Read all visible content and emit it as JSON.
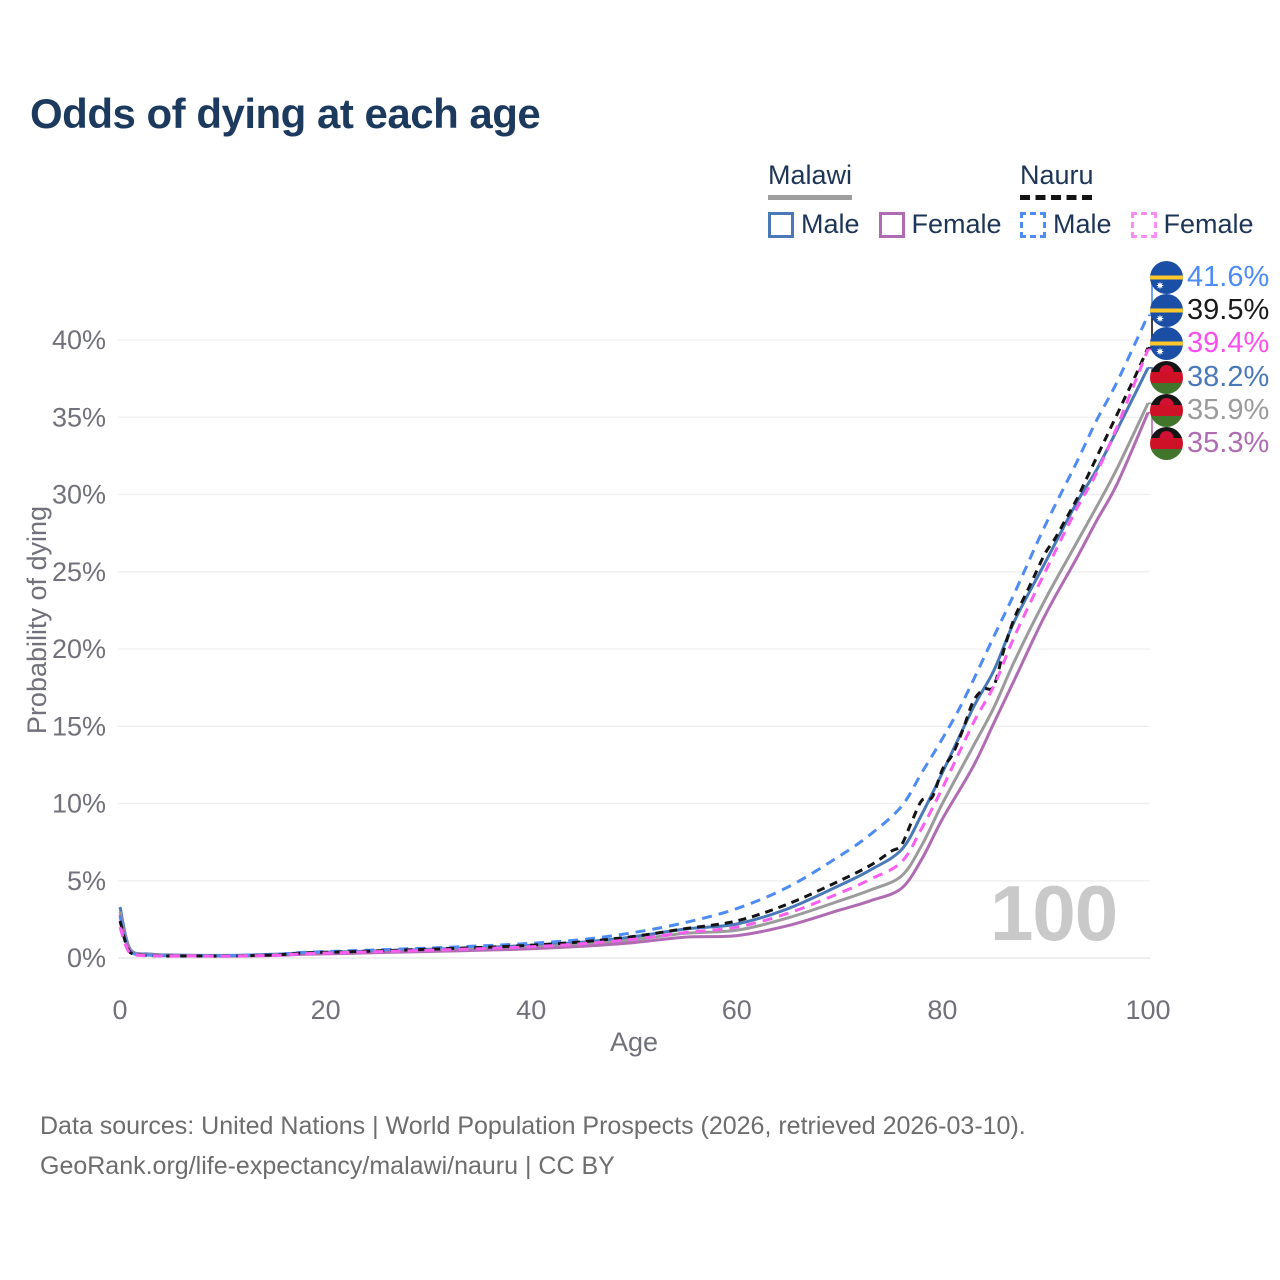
{
  "title": "Odds of dying at each age",
  "watermark_age": "100",
  "legend": {
    "groups": [
      {
        "country": "Malawi",
        "line_style": "solid",
        "underline_color": "#9e9e9e",
        "items": [
          {
            "label": "Male",
            "color": "#4a79b8"
          },
          {
            "label": "Female",
            "color": "#b06cb3"
          }
        ]
      },
      {
        "country": "Nauru",
        "line_style": "dashed",
        "underline_color": "#141414",
        "items": [
          {
            "label": "Male",
            "color": "#4d8bf5"
          },
          {
            "label": "Female",
            "color": "#f98df3"
          }
        ]
      }
    ]
  },
  "end_labels": [
    {
      "value": "41.6%",
      "series": "Nauru Male",
      "flag": "nauru",
      "color": "#4d8bf5"
    },
    {
      "value": "39.5%",
      "series": "Nauru Both sexes",
      "flag": "nauru",
      "color": "#1a1a1a"
    },
    {
      "value": "39.4%",
      "series": "Nauru Female",
      "flag": "nauru",
      "color": "#f94fef"
    },
    {
      "value": "38.2%",
      "series": "Malawi Male",
      "flag": "malawi",
      "color": "#4a79b8"
    },
    {
      "value": "35.9%",
      "series": "Malawi Both sexes",
      "flag": "malawi",
      "color": "#9b9b9b"
    },
    {
      "value": "35.3%",
      "series": "Malawi Female",
      "flag": "malawi",
      "color": "#b06cb3"
    }
  ],
  "axis": {
    "x": {
      "label": "Age",
      "ticks": [
        "0",
        "20",
        "40",
        "60",
        "80",
        "100"
      ],
      "tick_values": [
        0,
        20,
        40,
        60,
        80,
        100
      ]
    },
    "y": {
      "label": "Probability of dying",
      "ticks": [
        "0%",
        "5%",
        "10%",
        "15%",
        "20%",
        "25%",
        "30%",
        "35%",
        "40%"
      ],
      "tick_values": [
        0,
        5,
        10,
        15,
        20,
        25,
        30,
        35,
        40
      ]
    }
  },
  "footer": {
    "line1": "Data sources: United Nations | World Population Prospects (2026, retrieved 2026-03-10).",
    "line2": "GeoRank.org/life-expectancy/malawi/nauru | CC BY"
  },
  "chart_data": {
    "type": "line",
    "title": "Odds of dying at each age",
    "xlabel": "Age",
    "ylabel": "Probability of dying",
    "x_range": [
      0,
      100
    ],
    "y_range_pct": [
      0,
      42
    ],
    "grid": "horizontal",
    "legend_position": "top-right",
    "series": [
      {
        "id": "nauru-male",
        "name": "Nauru Male",
        "color": "#4d8bf5",
        "dash": "dashed",
        "end_label": "41.6%",
        "end_value": 41.6,
        "points": [
          [
            0,
            2.7
          ],
          [
            1,
            0.4
          ],
          [
            3,
            0.18
          ],
          [
            5,
            0.15
          ],
          [
            10,
            0.15
          ],
          [
            15,
            0.23
          ],
          [
            18,
            0.37
          ],
          [
            22,
            0.46
          ],
          [
            26,
            0.55
          ],
          [
            30,
            0.64
          ],
          [
            35,
            0.78
          ],
          [
            40,
            0.95
          ],
          [
            45,
            1.2
          ],
          [
            50,
            1.65
          ],
          [
            55,
            2.3
          ],
          [
            60,
            3.2
          ],
          [
            65,
            4.6
          ],
          [
            70,
            6.6
          ],
          [
            73,
            8.0
          ],
          [
            76,
            9.8
          ],
          [
            78,
            12.0
          ],
          [
            80,
            14.2
          ],
          [
            82,
            16.6
          ],
          [
            85,
            20.8
          ],
          [
            87,
            23.6
          ],
          [
            90,
            28.0
          ],
          [
            93,
            32.0
          ],
          [
            95,
            34.8
          ],
          [
            97,
            37.3
          ],
          [
            100,
            41.6
          ]
        ]
      },
      {
        "id": "nauru-both",
        "name": "Nauru Both sexes",
        "color": "#141414",
        "dash": "dashed",
        "end_label": "39.5%",
        "end_value": 39.5,
        "points": [
          [
            0,
            2.4
          ],
          [
            1,
            0.35
          ],
          [
            3,
            0.15
          ],
          [
            5,
            0.13
          ],
          [
            10,
            0.12
          ],
          [
            15,
            0.2
          ],
          [
            18,
            0.33
          ],
          [
            22,
            0.4
          ],
          [
            26,
            0.48
          ],
          [
            30,
            0.57
          ],
          [
            35,
            0.68
          ],
          [
            40,
            0.83
          ],
          [
            45,
            1.05
          ],
          [
            50,
            1.4
          ],
          [
            55,
            1.9
          ],
          [
            60,
            2.4
          ],
          [
            65,
            3.5
          ],
          [
            70,
            5.0
          ],
          [
            73,
            6.0
          ],
          [
            75,
            6.9
          ],
          [
            76,
            7.3
          ],
          [
            77,
            8.8
          ],
          [
            78,
            10.2
          ],
          [
            79,
            10.4
          ],
          [
            80,
            12.2
          ],
          [
            81,
            13.2
          ],
          [
            82,
            14.8
          ],
          [
            83,
            16.6
          ],
          [
            84,
            17.4
          ],
          [
            85,
            17.6
          ],
          [
            86,
            20.0
          ],
          [
            87,
            22.0
          ],
          [
            88,
            23.4
          ],
          [
            89,
            24.8
          ],
          [
            90,
            26.2
          ],
          [
            91,
            27.2
          ],
          [
            92,
            28.4
          ],
          [
            93,
            29.6
          ],
          [
            94,
            31.0
          ],
          [
            95,
            32.4
          ],
          [
            96,
            33.8
          ],
          [
            97,
            35.2
          ],
          [
            98,
            36.6
          ],
          [
            99,
            38.0
          ],
          [
            100,
            39.5
          ]
        ]
      },
      {
        "id": "nauru-female",
        "name": "Nauru Female",
        "color": "#f95ef0",
        "dash": "dashed",
        "end_label": "39.4%",
        "end_value": 39.4,
        "points": [
          [
            0,
            2.0
          ],
          [
            1,
            0.3
          ],
          [
            3,
            0.14
          ],
          [
            5,
            0.12
          ],
          [
            10,
            0.11
          ],
          [
            15,
            0.17
          ],
          [
            18,
            0.28
          ],
          [
            22,
            0.35
          ],
          [
            26,
            0.43
          ],
          [
            30,
            0.5
          ],
          [
            35,
            0.6
          ],
          [
            40,
            0.73
          ],
          [
            45,
            0.92
          ],
          [
            50,
            1.22
          ],
          [
            55,
            1.65
          ],
          [
            60,
            2.0
          ],
          [
            65,
            2.9
          ],
          [
            70,
            4.2
          ],
          [
            73,
            5.1
          ],
          [
            76,
            6.2
          ],
          [
            78,
            8.4
          ],
          [
            80,
            11.0
          ],
          [
            83,
            15.2
          ],
          [
            85,
            17.6
          ],
          [
            87,
            20.8
          ],
          [
            90,
            25.0
          ],
          [
            93,
            29.0
          ],
          [
            95,
            31.4
          ],
          [
            97,
            34.4
          ],
          [
            100,
            39.4
          ]
        ]
      },
      {
        "id": "malawi-male",
        "name": "Malawi Male",
        "color": "#4a79b8",
        "dash": "solid",
        "end_label": "38.2%",
        "end_value": 38.2,
        "points": [
          [
            0,
            3.3
          ],
          [
            1,
            0.55
          ],
          [
            3,
            0.25
          ],
          [
            5,
            0.2
          ],
          [
            10,
            0.17
          ],
          [
            15,
            0.24
          ],
          [
            18,
            0.33
          ],
          [
            22,
            0.4
          ],
          [
            26,
            0.48
          ],
          [
            30,
            0.56
          ],
          [
            35,
            0.67
          ],
          [
            40,
            0.82
          ],
          [
            45,
            1.03
          ],
          [
            50,
            1.38
          ],
          [
            55,
            1.88
          ],
          [
            60,
            2.2
          ],
          [
            65,
            3.2
          ],
          [
            70,
            4.7
          ],
          [
            73,
            5.7
          ],
          [
            76,
            7.0
          ],
          [
            78,
            9.3
          ],
          [
            80,
            12.0
          ],
          [
            83,
            16.2
          ],
          [
            85,
            18.6
          ],
          [
            87,
            21.8
          ],
          [
            90,
            25.6
          ],
          [
            93,
            29.4
          ],
          [
            95,
            31.6
          ],
          [
            97,
            34.2
          ],
          [
            100,
            38.2
          ]
        ]
      },
      {
        "id": "malawi-both",
        "name": "Malawi Both sexes",
        "color": "#9b9b9b",
        "dash": "solid",
        "end_label": "35.9%",
        "end_value": 35.9,
        "points": [
          [
            0,
            3.0
          ],
          [
            1,
            0.5
          ],
          [
            3,
            0.22
          ],
          [
            5,
            0.18
          ],
          [
            10,
            0.14
          ],
          [
            15,
            0.2
          ],
          [
            18,
            0.28
          ],
          [
            22,
            0.34
          ],
          [
            26,
            0.41
          ],
          [
            30,
            0.48
          ],
          [
            35,
            0.58
          ],
          [
            40,
            0.7
          ],
          [
            45,
            0.88
          ],
          [
            50,
            1.18
          ],
          [
            55,
            1.6
          ],
          [
            60,
            1.8
          ],
          [
            65,
            2.6
          ],
          [
            70,
            3.7
          ],
          [
            73,
            4.4
          ],
          [
            76,
            5.3
          ],
          [
            78,
            7.3
          ],
          [
            80,
            10.0
          ],
          [
            83,
            13.7
          ],
          [
            85,
            16.2
          ],
          [
            87,
            19.2
          ],
          [
            90,
            23.2
          ],
          [
            93,
            26.8
          ],
          [
            95,
            29.2
          ],
          [
            97,
            31.7
          ],
          [
            100,
            35.9
          ]
        ]
      },
      {
        "id": "malawi-female",
        "name": "Malawi Female",
        "color": "#b06cb3",
        "dash": "solid",
        "end_label": "35.3%",
        "end_value": 35.3,
        "points": [
          [
            0,
            2.8
          ],
          [
            1,
            0.45
          ],
          [
            3,
            0.2
          ],
          [
            5,
            0.16
          ],
          [
            10,
            0.12
          ],
          [
            15,
            0.16
          ],
          [
            18,
            0.24
          ],
          [
            22,
            0.29
          ],
          [
            26,
            0.36
          ],
          [
            30,
            0.42
          ],
          [
            35,
            0.5
          ],
          [
            40,
            0.6
          ],
          [
            45,
            0.76
          ],
          [
            50,
            1.0
          ],
          [
            55,
            1.35
          ],
          [
            60,
            1.45
          ],
          [
            65,
            2.1
          ],
          [
            70,
            3.1
          ],
          [
            73,
            3.7
          ],
          [
            76,
            4.5
          ],
          [
            78,
            6.4
          ],
          [
            80,
            9.0
          ],
          [
            83,
            12.4
          ],
          [
            85,
            15.2
          ],
          [
            87,
            18.0
          ],
          [
            90,
            22.2
          ],
          [
            93,
            25.8
          ],
          [
            95,
            28.3
          ],
          [
            97,
            30.7
          ],
          [
            100,
            35.3
          ]
        ]
      }
    ]
  }
}
